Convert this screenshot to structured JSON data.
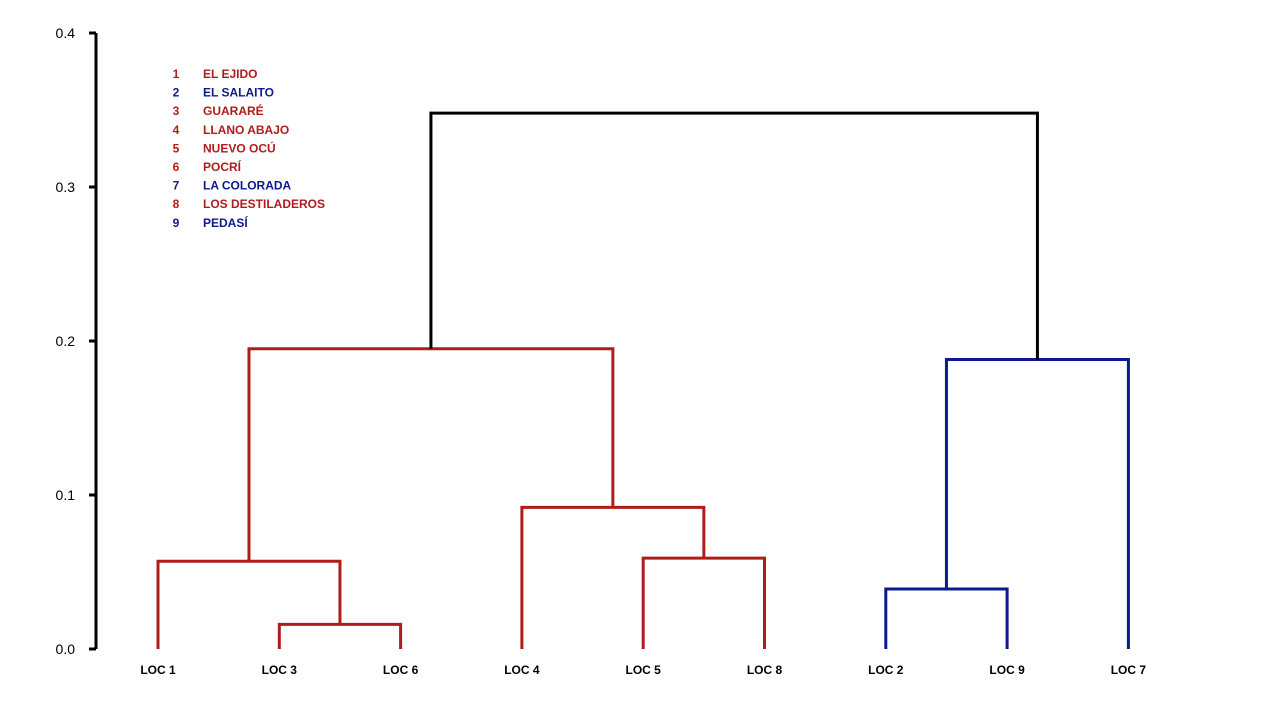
{
  "chart_data": {
    "type": "dendrogram",
    "ylim": [
      0,
      0.4
    ],
    "yticks": [
      "0.0",
      "0.1",
      "0.2",
      "0.3",
      "0.4"
    ],
    "ytick_values": [
      0,
      0.1,
      0.2,
      0.3,
      0.4
    ],
    "grid": false,
    "legend_placement": "top-left",
    "colors": {
      "red": "#B01C1C",
      "blue": "#0D1A8C",
      "black": "#000000"
    },
    "leaves": [
      {
        "id": "L1",
        "label": "LOC 1",
        "color": "red"
      },
      {
        "id": "L3",
        "label": "LOC 3",
        "color": "red"
      },
      {
        "id": "L6",
        "label": "LOC 6",
        "color": "red"
      },
      {
        "id": "L4",
        "label": "LOC 4",
        "color": "red"
      },
      {
        "id": "L5",
        "label": "LOC 5",
        "color": "red"
      },
      {
        "id": "L8",
        "label": "LOC 8",
        "color": "red"
      },
      {
        "id": "L2",
        "label": "LOC 2",
        "color": "blue"
      },
      {
        "id": "L9",
        "label": "LOC 9",
        "color": "blue"
      },
      {
        "id": "L7",
        "label": "LOC 7",
        "color": "blue"
      }
    ],
    "merges": [
      {
        "id": "m36",
        "left": "L3",
        "right": "L6",
        "height": 0.016,
        "color": "red"
      },
      {
        "id": "m136",
        "left": "L1",
        "right": "m36",
        "height": 0.057,
        "color": "red"
      },
      {
        "id": "m58",
        "left": "L5",
        "right": "L8",
        "height": 0.059,
        "color": "red"
      },
      {
        "id": "m458",
        "left": "L4",
        "right": "m58",
        "height": 0.092,
        "color": "red"
      },
      {
        "id": "mred",
        "left": "m136",
        "right": "m458",
        "height": 0.195,
        "color": "red"
      },
      {
        "id": "m29",
        "left": "L2",
        "right": "L9",
        "height": 0.039,
        "color": "blue"
      },
      {
        "id": "mblue",
        "left": "m29",
        "right": "L7",
        "height": 0.188,
        "color": "blue"
      },
      {
        "id": "root",
        "left": "mred",
        "right": "mblue",
        "height": 0.348,
        "color": "black"
      }
    ],
    "legend": [
      {
        "num": "1",
        "name": "EL EJIDO",
        "color": "red"
      },
      {
        "num": "2",
        "name": "EL SALAITO",
        "color": "blue"
      },
      {
        "num": "3",
        "name": "GUARARÉ",
        "color": "red"
      },
      {
        "num": "4",
        "name": "LLANO ABAJO",
        "color": "red"
      },
      {
        "num": "5",
        "name": "NUEVO OCÚ",
        "color": "red"
      },
      {
        "num": "6",
        "name": "POCRÍ",
        "color": "red"
      },
      {
        "num": "7",
        "name": "LA COLORADA",
        "color": "blue"
      },
      {
        "num": "8",
        "name": "LOS DESTILADEROS",
        "color": "red"
      },
      {
        "num": "9",
        "name": "PEDASÍ",
        "color": "blue"
      }
    ]
  }
}
